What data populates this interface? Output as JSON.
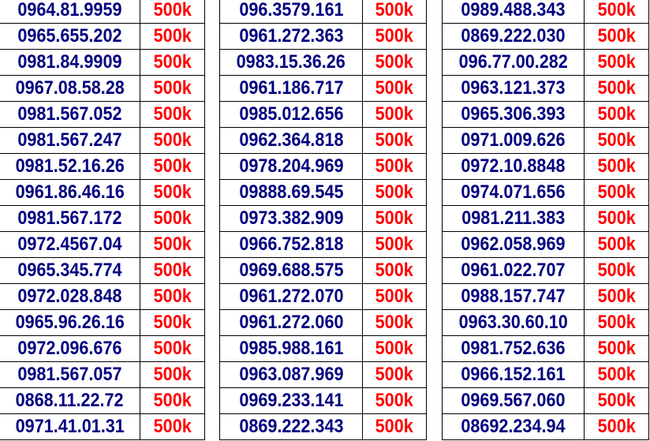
{
  "colors": {
    "number": "#000080",
    "price": "#ff0000"
  },
  "columns": [
    {
      "rows": [
        {
          "number": "0964.81.9959",
          "price": "500k"
        },
        {
          "number": "0965.655.202",
          "price": "500k"
        },
        {
          "number": "0981.84.9909",
          "price": "500k"
        },
        {
          "number": "0967.08.58.28",
          "price": "500k"
        },
        {
          "number": "0981.567.052",
          "price": "500k"
        },
        {
          "number": "0981.567.247",
          "price": "500k"
        },
        {
          "number": "0981.52.16.26",
          "price": "500k"
        },
        {
          "number": "0961.86.46.16",
          "price": "500k"
        },
        {
          "number": "0981.567.172",
          "price": "500k"
        },
        {
          "number": "0972.4567.04",
          "price": "500k"
        },
        {
          "number": "0965.345.774",
          "price": "500k"
        },
        {
          "number": "0972.028.848",
          "price": "500k"
        },
        {
          "number": "0965.96.26.16",
          "price": "500k"
        },
        {
          "number": "0972.096.676",
          "price": "500k"
        },
        {
          "number": "0981.567.057",
          "price": "500k"
        },
        {
          "number": "0868.11.22.72",
          "price": "500k"
        },
        {
          "number": "0971.41.01.31",
          "price": "500k"
        }
      ]
    },
    {
      "rows": [
        {
          "number": "096.3579.161",
          "price": "500k"
        },
        {
          "number": "0961.272.363",
          "price": "500k"
        },
        {
          "number": "0983.15.36.26",
          "price": "500k"
        },
        {
          "number": "0961.186.717",
          "price": "500k"
        },
        {
          "number": "0985.012.656",
          "price": "500k"
        },
        {
          "number": "0962.364.818",
          "price": "500k"
        },
        {
          "number": "0978.204.969",
          "price": "500k"
        },
        {
          "number": "09888.69.545",
          "price": "500k"
        },
        {
          "number": "0973.382.909",
          "price": "500k"
        },
        {
          "number": "0966.752.818",
          "price": "500k"
        },
        {
          "number": "0969.688.575",
          "price": "500k"
        },
        {
          "number": "0961.272.070",
          "price": "500k"
        },
        {
          "number": "0961.272.060",
          "price": "500k"
        },
        {
          "number": "0985.988.161",
          "price": "500k"
        },
        {
          "number": "0963.087.969",
          "price": "500k"
        },
        {
          "number": "0969.233.141",
          "price": "500k"
        },
        {
          "number": "0869.222.343",
          "price": "500k"
        }
      ]
    },
    {
      "rows": [
        {
          "number": "0989.488.343",
          "price": "500k"
        },
        {
          "number": "0869.222.030",
          "price": "500k"
        },
        {
          "number": "096.77.00.282",
          "price": "500k"
        },
        {
          "number": "0963.121.373",
          "price": "500k"
        },
        {
          "number": "0965.306.393",
          "price": "500k"
        },
        {
          "number": "0971.009.626",
          "price": "500k"
        },
        {
          "number": "0972.10.8848",
          "price": "500k"
        },
        {
          "number": "0974.071.656",
          "price": "500k"
        },
        {
          "number": "0981.211.383",
          "price": "500k"
        },
        {
          "number": "0962.058.969",
          "price": "500k"
        },
        {
          "number": "0961.022.707",
          "price": "500k"
        },
        {
          "number": "0988.157.747",
          "price": "500k"
        },
        {
          "number": "0963.30.60.10",
          "price": "500k"
        },
        {
          "number": "0981.752.636",
          "price": "500k"
        },
        {
          "number": "0966.152.161",
          "price": "500k"
        },
        {
          "number": "0969.567.060",
          "price": "500k"
        },
        {
          "number": "08692.234.94",
          "price": "500k"
        }
      ]
    }
  ]
}
